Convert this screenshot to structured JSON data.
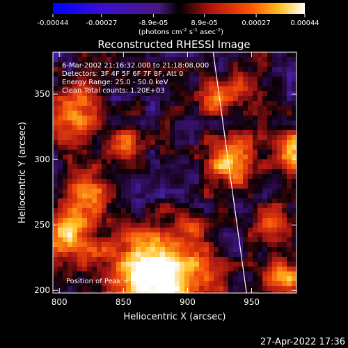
{
  "chart_data": {
    "type": "heatmap",
    "title": "Reconstructed RHESSI Image",
    "xlabel": "Heliocentric X (arcsec)",
    "ylabel": "Heliocentric Y (arcsec)",
    "xlim": [
      795,
      985
    ],
    "ylim": [
      198,
      382
    ],
    "xticks": [
      800,
      850,
      900,
      950
    ],
    "yticks": [
      200,
      250,
      300,
      350
    ],
    "colorbar": {
      "ticks": [
        "-0.00044",
        "-0.00027",
        "-8.9e-05",
        "8.9e-05",
        "0.00027",
        "0.00044"
      ],
      "range": [
        -0.00044,
        0.00044
      ],
      "unit_base": "(photons cm",
      "unit_exp1": "-2",
      "unit_mid": " s",
      "unit_exp2": "-1",
      "unit_mid2": " asec",
      "unit_exp3": "-2",
      "unit_end": ")"
    },
    "overlay_lines": [
      "6-Mar-2002 21:16:32.000 to 21:18:08.000",
      "Detectors: 3F 4F 5F 6F 7F 8F, Att 0",
      "Energy Range: 25.0 - 50.0 keV",
      "Clean    Total counts: 1.20E+03"
    ],
    "peak_label": "Position of Peak = [876,198]",
    "limb_line": [
      [
        920,
        382
      ],
      [
        946,
        198
      ]
    ],
    "grid": false
  },
  "footer": {
    "timestamp": "27-Apr-2022 17:36"
  }
}
